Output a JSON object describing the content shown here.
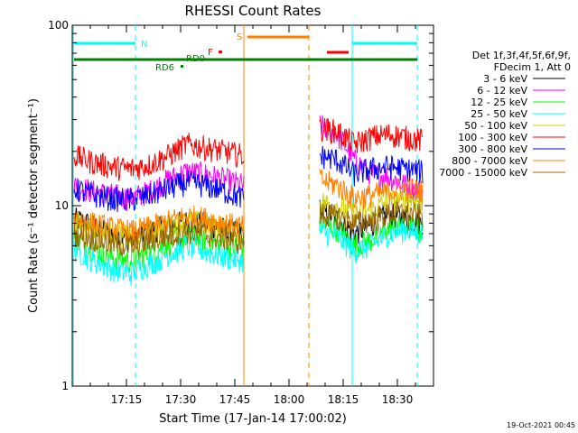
{
  "chart_data": {
    "type": "line",
    "title": "RHESSI Count Rates",
    "xlabel": "Start Time (17-Jan-14 17:00:02)",
    "ylabel": "Count Rate (s⁻¹ detector segment⁻¹)",
    "y_scale": "log",
    "ylim": [
      1,
      100
    ],
    "xlim_minutes_after_start": [
      0,
      100
    ],
    "x_tick_labels": [
      "17:15",
      "17:30",
      "17:45",
      "18:00",
      "18:15",
      "18:30"
    ],
    "x_ticks_minutes": [
      15,
      30,
      45,
      60,
      75,
      90
    ],
    "y_tick_labels": [
      "1",
      "10",
      "100"
    ],
    "y_ticks": [
      1,
      10,
      100
    ],
    "legend_header": [
      "Det 1f,3f,4f,5f,6f,9f,",
      "FDecim 1, Att 0"
    ],
    "legend_placement": "right outside",
    "data_gap_minutes": [
      47.5,
      68.5
    ],
    "series": [
      {
        "name": "3 - 6 keV",
        "color": "#000000",
        "values": [
          8.5,
          7.8,
          7.0,
          6.6,
          7.2,
          7.8,
          8.2,
          8.0,
          7.4,
          7.0
        ],
        "values_after_gap": [
          9.5,
          8.5,
          7.0,
          7.8,
          9.0,
          8.5,
          8.0
        ]
      },
      {
        "name": "6 - 12 keV",
        "color": "#ff00ff",
        "values": [
          13.0,
          12.0,
          11.5,
          11.0,
          12.0,
          14.0,
          15.5,
          15.0,
          14.0,
          13.0
        ],
        "values_after_gap": [
          28.0,
          25.0,
          18.0,
          15.0,
          14.5,
          13.0,
          12.0
        ]
      },
      {
        "name": "12 - 25 keV",
        "color": "#00ff00",
        "values": [
          6.5,
          5.8,
          5.2,
          5.0,
          5.5,
          6.2,
          6.8,
          6.5,
          6.0,
          5.8
        ],
        "values_after_gap": [
          8.0,
          7.5,
          6.0,
          6.5,
          7.5,
          7.8,
          7.2
        ]
      },
      {
        "name": "25 - 50 keV",
        "color": "#00ffff",
        "values": [
          5.8,
          5.0,
          4.5,
          4.2,
          4.8,
          5.4,
          6.0,
          5.6,
          5.2,
          5.0
        ],
        "values_after_gap": [
          7.2,
          6.8,
          5.6,
          6.0,
          7.0,
          7.4,
          7.0
        ]
      },
      {
        "name": "50 - 100 keV",
        "color": "#cccc00",
        "values": [
          8.0,
          7.5,
          7.0,
          6.8,
          7.2,
          7.8,
          8.2,
          8.0,
          7.5,
          7.2
        ],
        "values_after_gap": [
          10.5,
          10.0,
          9.0,
          9.5,
          10.5,
          11.0,
          10.5
        ]
      },
      {
        "name": "100 - 300 keV",
        "color": "#ff0000",
        "values": [
          19.0,
          17.5,
          16.5,
          16.0,
          17.0,
          19.0,
          22.0,
          21.0,
          20.0,
          19.0
        ],
        "values_after_gap": [
          27.0,
          26.0,
          22.0,
          24.0,
          25.0,
          24.0,
          23.0
        ]
      },
      {
        "name": "300 - 800 keV",
        "color": "#0000ff",
        "values": [
          12.5,
          11.5,
          11.0,
          10.8,
          11.5,
          12.5,
          13.5,
          13.0,
          12.0,
          11.0
        ],
        "values_after_gap": [
          19.0,
          18.0,
          15.0,
          16.0,
          16.5,
          16.0,
          15.5
        ]
      },
      {
        "name": "800 - 7000 keV",
        "color": "#ff8000",
        "values": [
          8.5,
          8.0,
          7.5,
          7.2,
          7.6,
          8.2,
          8.8,
          8.5,
          8.0,
          7.6
        ],
        "values_after_gap": [
          14.0,
          13.0,
          11.0,
          11.5,
          12.0,
          12.5,
          12.0
        ]
      },
      {
        "name": "7000 - 15000 keV",
        "color": "#996600",
        "values": [
          7.0,
          6.6,
          6.2,
          6.0,
          6.4,
          6.8,
          7.2,
          7.0,
          6.6,
          6.3
        ],
        "values_after_gap": [
          9.0,
          8.8,
          8.0,
          8.4,
          9.0,
          9.2,
          8.8
        ]
      }
    ],
    "annotations": {
      "N": "N",
      "S": "S",
      "F": "F",
      "RD0": "RD0",
      "RD6": "RD6"
    },
    "footer": "19-Oct-2021 00:45"
  }
}
